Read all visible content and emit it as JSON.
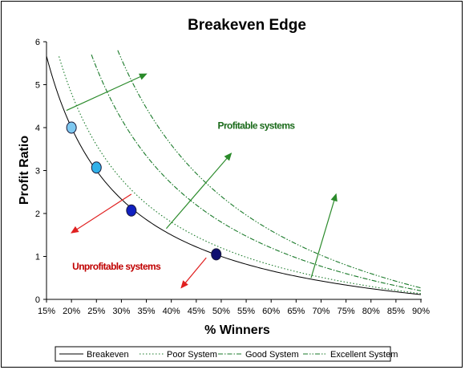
{
  "colors": {
    "breakeven": "#000000",
    "series_green": "#1a7a2a",
    "arrow_green": "#2a8a2a",
    "arrow_red": "#e02020",
    "profitable_text": "#1a6a1a",
    "unprofitable_text": "#c00000",
    "marker_light": "#7ec8f0",
    "marker_mid": "#30b0e8",
    "marker_blue": "#1020c0",
    "marker_dark": "#101070"
  },
  "chart_data": {
    "type": "line",
    "title": "Breakeven Edge",
    "xlabel": "% Winners",
    "ylabel": "Profit Ratio",
    "xlim": [
      15,
      90
    ],
    "ylim": [
      0,
      6
    ],
    "x_ticks": [
      15,
      20,
      25,
      30,
      35,
      40,
      45,
      50,
      55,
      60,
      65,
      70,
      75,
      80,
      85,
      90
    ],
    "x_tick_labels": [
      "15%",
      "20%",
      "25%",
      "30%",
      "35%",
      "40%",
      "45%",
      "50%",
      "55%",
      "60%",
      "65%",
      "70%",
      "75%",
      "80%",
      "85%",
      "90%"
    ],
    "y_ticks": [
      0,
      1,
      2,
      3,
      4,
      5,
      6
    ],
    "y_tick_labels": [
      "0",
      "1",
      "2",
      "3",
      "4",
      "5",
      "6"
    ],
    "grid": false,
    "legend_position": "bottom",
    "series": [
      {
        "name": "Breakeven",
        "style": "solid",
        "x_start": 15,
        "x_end": 90,
        "points": [
          [
            15,
            5.67
          ],
          [
            20,
            4.0
          ],
          [
            25,
            3.0
          ],
          [
            30,
            2.33
          ],
          [
            35,
            1.86
          ],
          [
            40,
            1.5
          ],
          [
            45,
            1.22
          ],
          [
            50,
            1.0
          ],
          [
            55,
            0.82
          ],
          [
            60,
            0.67
          ],
          [
            65,
            0.54
          ],
          [
            70,
            0.43
          ],
          [
            75,
            0.33
          ],
          [
            80,
            0.25
          ],
          [
            85,
            0.18
          ],
          [
            90,
            0.11
          ]
        ]
      },
      {
        "name": "Poor System",
        "style": "dotted",
        "x_start": 17.5,
        "x_end": 90,
        "points": [
          [
            17.5,
            5.86
          ],
          [
            20,
            4.8
          ],
          [
            25,
            3.6
          ],
          [
            30,
            2.8
          ],
          [
            35,
            2.23
          ],
          [
            40,
            1.8
          ],
          [
            45,
            1.47
          ],
          [
            50,
            1.2
          ],
          [
            55,
            0.98
          ],
          [
            60,
            0.8
          ],
          [
            65,
            0.65
          ],
          [
            70,
            0.51
          ],
          [
            75,
            0.4
          ],
          [
            80,
            0.3
          ],
          [
            85,
            0.21
          ],
          [
            90,
            0.13
          ]
        ]
      },
      {
        "name": "Good System",
        "style": "dashdot",
        "x_start": 24,
        "x_end": 90,
        "points": [
          [
            24,
            5.7
          ],
          [
            25,
            5.4
          ],
          [
            30,
            4.2
          ],
          [
            35,
            3.34
          ],
          [
            40,
            2.7
          ],
          [
            45,
            2.2
          ],
          [
            50,
            1.8
          ],
          [
            55,
            1.47
          ],
          [
            60,
            1.2
          ],
          [
            65,
            0.97
          ],
          [
            70,
            0.77
          ],
          [
            75,
            0.6
          ],
          [
            80,
            0.45
          ],
          [
            85,
            0.32
          ],
          [
            90,
            0.2
          ]
        ]
      },
      {
        "name": "Excellent System",
        "style": "dashdotdot",
        "x_start": 28.5,
        "x_end": 90,
        "points": [
          [
            28.5,
            5.65
          ],
          [
            30,
            5.6
          ],
          [
            35,
            4.46
          ],
          [
            40,
            3.6
          ],
          [
            45,
            2.93
          ],
          [
            50,
            2.4
          ],
          [
            55,
            1.96
          ],
          [
            60,
            1.6
          ],
          [
            65,
            1.29
          ],
          [
            70,
            1.03
          ],
          [
            75,
            0.8
          ],
          [
            80,
            0.6
          ],
          [
            85,
            0.42
          ],
          [
            90,
            0.27
          ]
        ]
      }
    ],
    "markers": [
      {
        "x": 20,
        "y": 4.0,
        "color": "marker_light"
      },
      {
        "x": 25,
        "y": 3.07,
        "color": "marker_mid"
      },
      {
        "x": 32,
        "y": 2.07,
        "color": "marker_blue"
      },
      {
        "x": 49,
        "y": 1.05,
        "color": "marker_dark"
      }
    ],
    "arrows": [
      {
        "from": [
          19,
          4.4
        ],
        "to": [
          35,
          5.25
        ],
        "color": "arrow_green"
      },
      {
        "from": [
          39,
          1.65
        ],
        "to": [
          52,
          3.4
        ],
        "color": "arrow_green"
      },
      {
        "from": [
          68,
          0.5
        ],
        "to": [
          73,
          2.45
        ],
        "color": "arrow_green"
      },
      {
        "from": [
          32,
          2.45
        ],
        "to": [
          20,
          1.55
        ],
        "color": "arrow_red"
      },
      {
        "from": [
          47,
          0.97
        ],
        "to": [
          42,
          0.27
        ],
        "color": "arrow_red"
      }
    ],
    "annotations": [
      {
        "text": "Profitable systems",
        "x": 57,
        "y": 4.05,
        "color": "profitable_text"
      },
      {
        "text": "Unprofitable systems",
        "x": 29,
        "y": 0.77,
        "color": "unprofitable_text"
      }
    ]
  }
}
